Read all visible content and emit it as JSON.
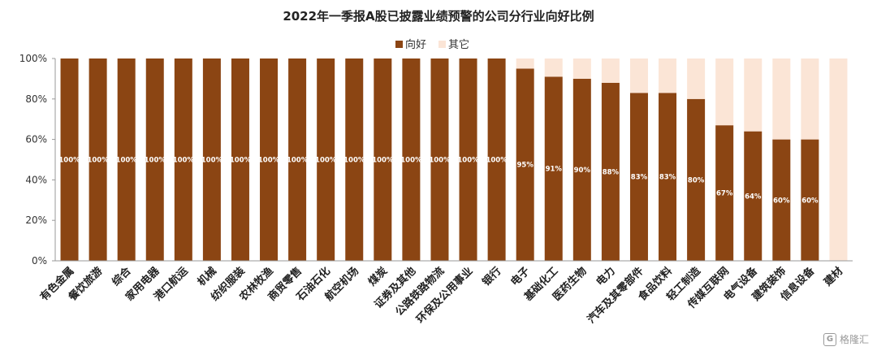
{
  "chart_data": {
    "type": "bar",
    "stacked": true,
    "title": "2022年一季报A股已披露业绩预警的公司分行业向好比例",
    "xlabel": "",
    "ylabel": "",
    "ylim": [
      0,
      100
    ],
    "yticks": [
      "0%",
      "20%",
      "40%",
      "60%",
      "80%",
      "100%"
    ],
    "grid": false,
    "legend_position": "top-center",
    "categories": [
      "有色金属",
      "餐饮旅游",
      "综合",
      "家用电器",
      "港口航运",
      "机械",
      "纺织服装",
      "农林牧渔",
      "商贸零售",
      "石油石化",
      "航空机场",
      "煤炭",
      "证券及其他",
      "公路铁路物流",
      "环保及公用事业",
      "银行",
      "电子",
      "基础化工",
      "医药生物",
      "电力",
      "汽车及其零部件",
      "食品饮料",
      "轻工制造",
      "传媒互联网",
      "电气设备",
      "建筑装饰",
      "信息设备",
      "建材"
    ],
    "series": [
      {
        "name": "向好",
        "color": "#8B4513",
        "values": [
          100,
          100,
          100,
          100,
          100,
          100,
          100,
          100,
          100,
          100,
          100,
          100,
          100,
          100,
          100,
          100,
          95,
          91,
          90,
          88,
          83,
          83,
          80,
          67,
          64,
          60,
          60,
          0
        ],
        "labels": [
          "100%",
          "100%",
          "100%",
          "100%",
          "100%",
          "100%",
          "100%",
          "100%",
          "100%",
          "100%",
          "100%",
          "100%",
          "100%",
          "100%",
          "100%",
          "100%",
          "95%",
          "91%",
          "90%",
          "88%",
          "83%",
          "83%",
          "80%",
          "67%",
          "64%",
          "60%",
          "60%",
          ""
        ]
      },
      {
        "name": "其它",
        "color": "#FBE5D6",
        "values": [
          0,
          0,
          0,
          0,
          0,
          0,
          0,
          0,
          0,
          0,
          0,
          0,
          0,
          0,
          0,
          0,
          5,
          9,
          10,
          12,
          17,
          17,
          20,
          33,
          36,
          40,
          40,
          100
        ]
      }
    ]
  },
  "watermark": {
    "icon": "G",
    "text": "格隆汇"
  }
}
